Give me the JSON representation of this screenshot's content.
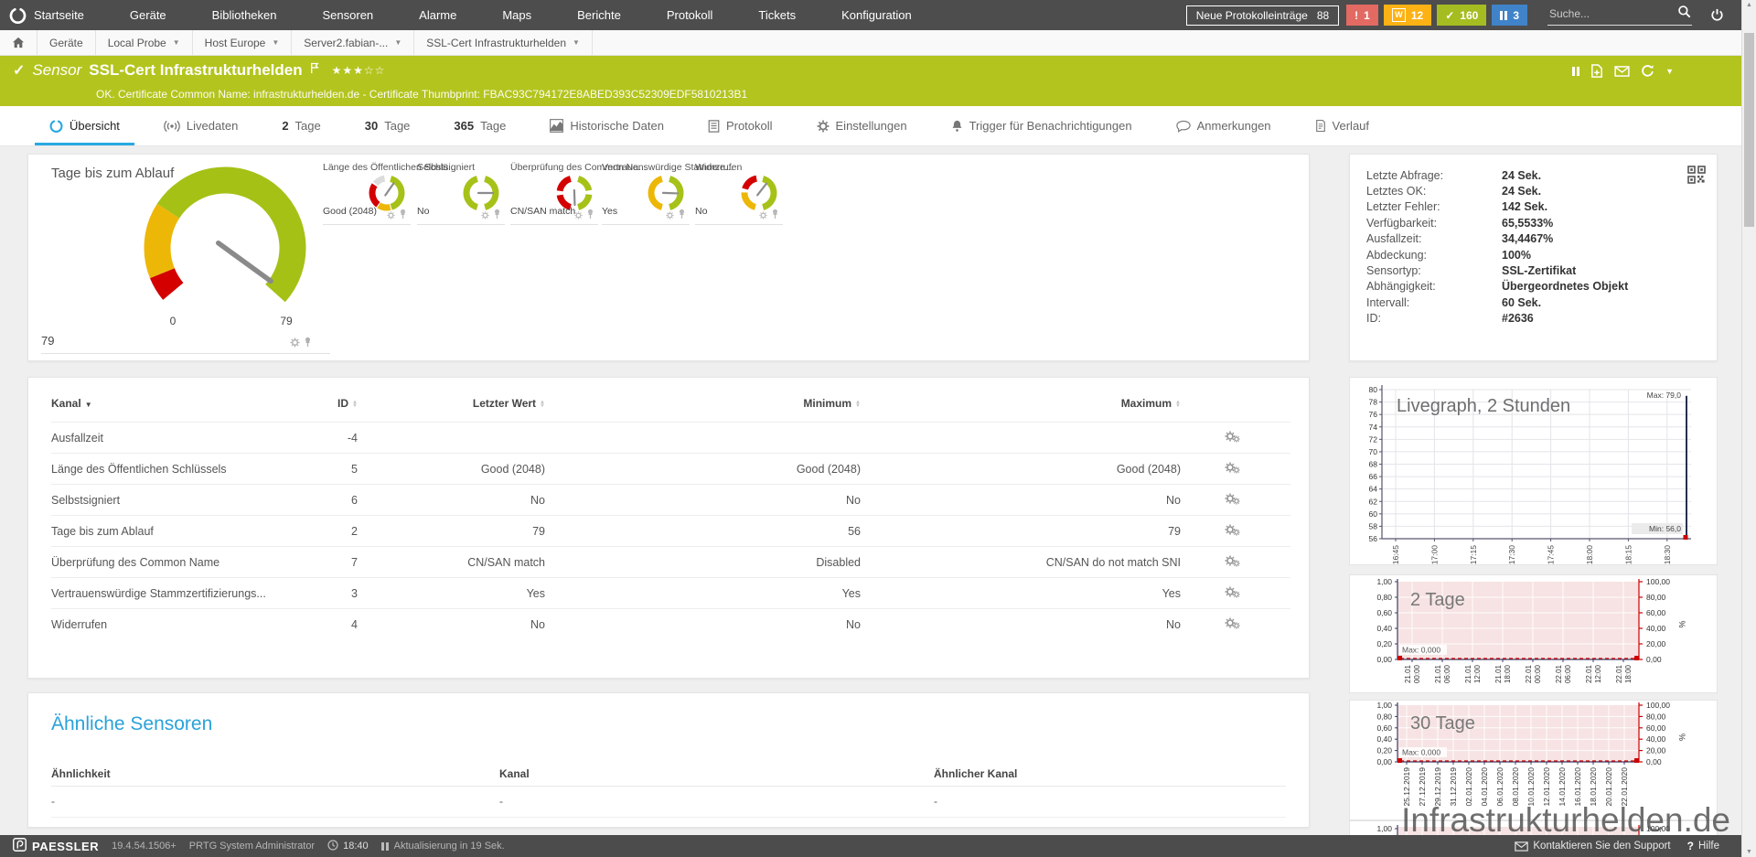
{
  "topnav": {
    "items": [
      "Startseite",
      "Geräte",
      "Bibliotheken",
      "Sensoren",
      "Alarme",
      "Maps",
      "Berichte",
      "Protokoll",
      "Tickets",
      "Konfiguration"
    ],
    "log_button_label": "Neue Protokolleinträge",
    "log_button_count": "88",
    "badges": [
      {
        "type": "error",
        "glyph": "!",
        "count": "1",
        "color": "#e26a62",
        "boxed": false
      },
      {
        "type": "warning",
        "glyph": "W",
        "count": "12",
        "color": "#fcb215",
        "boxed": true
      },
      {
        "type": "ok",
        "glyph": "✓",
        "count": "160",
        "color": "#a6bd21",
        "boxed": false
      },
      {
        "type": "paused",
        "glyph": "pause",
        "count": "3",
        "color": "#4083c9",
        "boxed": false
      }
    ],
    "search_placeholder": "Suche..."
  },
  "breadcrumb": [
    "Geräte",
    "Local Probe",
    "Host Europe",
    "Server2.fabian-...",
    "SSL-Cert Infrastrukturhelden"
  ],
  "sensor_header": {
    "kind": "Sensor",
    "name": "SSL-Cert Infrastrukturhelden",
    "stars_filled": 3,
    "stars_empty": 2,
    "status_line": "OK. Certificate Common Name: infrastrukturhelden.de - Certificate Thumbprint: FBAC93C794172E8ABED393C52309EDF5810213B1",
    "accent_color": "#b3c41e"
  },
  "tabs": [
    {
      "label": "Übersicht",
      "icon": "gauge",
      "active": true
    },
    {
      "label": "Livedaten",
      "icon": "live"
    },
    {
      "prefix": "2",
      "label": "Tage"
    },
    {
      "prefix": "30",
      "label": "Tage"
    },
    {
      "prefix": "365",
      "label": "Tage"
    },
    {
      "label": "Historische Daten",
      "icon": "chart"
    },
    {
      "label": "Protokoll",
      "icon": "doc"
    },
    {
      "label": "Einstellungen",
      "icon": "gear"
    },
    {
      "label": "Trigger für Benachrichtigungen",
      "icon": "bell"
    },
    {
      "label": "Anmerkungen",
      "icon": "comment"
    },
    {
      "label": "Verlauf",
      "icon": "note"
    }
  ],
  "overview": {
    "main_gauge": {
      "title": "Tage bis zum Ablauf",
      "value": "79",
      "scale_min": "0",
      "scale_max": "79",
      "needle_deg": 126,
      "segments": [
        [
          230,
          248,
          "#d40000"
        ],
        [
          248,
          303,
          "#edb707"
        ],
        [
          303,
          492,
          "#a5c116"
        ]
      ]
    },
    "mini_gauges": [
      {
        "title": "Länge des Öffentlichen Schlü...",
        "value": "Good (2048)",
        "needle_deg": 35,
        "segments": [
          [
            15,
            163,
            "#a6c219"
          ],
          [
            167,
            213,
            "#edb707"
          ],
          [
            217,
            303,
            "#d40000"
          ],
          [
            309,
            351,
            "#dcdcdc"
          ]
        ]
      },
      {
        "title": "Selbstsigniert",
        "value": "No",
        "needle_deg": 90,
        "segments": [
          [
            15,
            165,
            "#a6c219"
          ],
          [
            195,
            345,
            "#a6c219"
          ]
        ]
      },
      {
        "title": "Überprüfung des Common Na...",
        "value": "CN/SAN match",
        "needle_deg": 178,
        "segments": [
          [
            15,
            80,
            "#a6c219"
          ],
          [
            96,
            165,
            "#a6c219"
          ],
          [
            195,
            262,
            "#d40000"
          ],
          [
            278,
            345,
            "#d40000"
          ]
        ]
      },
      {
        "title": "Vertrauenswürdige Stammze...",
        "value": "Yes",
        "needle_deg": 92,
        "segments": [
          [
            15,
            165,
            "#a6c219"
          ],
          [
            195,
            345,
            "#edb707"
          ]
        ]
      },
      {
        "title": "Widerrufen",
        "value": "No",
        "needle_deg": 38,
        "segments": [
          [
            15,
            165,
            "#a6c219"
          ],
          [
            195,
            272,
            "#edb707"
          ],
          [
            286,
            350,
            "#d40000"
          ]
        ]
      }
    ]
  },
  "channel_table": {
    "headers": [
      "Kanal",
      "ID",
      "Letzter Wert",
      "Minimum",
      "Maximum"
    ],
    "rows": [
      {
        "kanal": "Ausfallzeit",
        "id": "-4",
        "letzter": "",
        "min": "",
        "max": ""
      },
      {
        "kanal": "Länge des Öffentlichen Schlüssels",
        "id": "5",
        "letzter": "Good (2048)",
        "min": "Good (2048)",
        "max": "Good (2048)"
      },
      {
        "kanal": "Selbstsigniert",
        "id": "6",
        "letzter": "No",
        "min": "No",
        "max": "No"
      },
      {
        "kanal": "Tage bis zum Ablauf",
        "id": "2",
        "letzter": "79",
        "min": "56",
        "max": "79"
      },
      {
        "kanal": "Überprüfung des Common Name",
        "id": "7",
        "letzter": "CN/SAN match",
        "min": "Disabled",
        "max": "CN/SAN do not match SNI"
      },
      {
        "kanal": "Vertrauenswürdige Stammzertifizierungs...",
        "id": "3",
        "letzter": "Yes",
        "min": "Yes",
        "max": "Yes"
      },
      {
        "kanal": "Widerrufen",
        "id": "4",
        "letzter": "No",
        "min": "No",
        "max": "No"
      }
    ]
  },
  "info_panel": {
    "rows": [
      {
        "label": "Letzte Abfrage:",
        "value": "24 Sek."
      },
      {
        "label": "Letztes OK:",
        "value": "24 Sek."
      },
      {
        "label": "Letzter Fehler:",
        "value": "142 Sek."
      },
      {
        "label": "Verfügbarkeit:",
        "value": "65,5533%"
      },
      {
        "label": "Ausfallzeit:",
        "value": "34,4467%"
      },
      {
        "label": "Abdeckung:",
        "value": "100%"
      },
      {
        "label": "Sensortyp:",
        "value": "SSL-Zertifikat"
      },
      {
        "label": "Abhängigkeit:",
        "value": "Übergeordnetes Objekt"
      },
      {
        "label": "Intervall:",
        "value": "60 Sek."
      },
      {
        "label": "ID:",
        "value": "#2636"
      }
    ]
  },
  "chart_data": [
    {
      "id": "livegraph",
      "type": "line",
      "title": "Livegraph, 2 Stunden",
      "x_ticks": [
        "16:45",
        "17:00",
        "17:15",
        "17:30",
        "17:45",
        "18:00",
        "18:15",
        "18:30"
      ],
      "y_ticks": [
        "80",
        "78",
        "76",
        "74",
        "72",
        "70",
        "68",
        "66",
        "64",
        "62",
        "60",
        "58",
        "56"
      ],
      "y_min": 56,
      "y_max": 80,
      "max_label": "Max: 79,0",
      "min_label": "Min: 56,0",
      "series": [
        {
          "name": "Tage bis zum Ablauf",
          "shape": "flat then spike at right edge",
          "spike_from": 56,
          "spike_to": 79
        }
      ],
      "line_color": "#25304f",
      "grid": true,
      "legend": "none"
    },
    {
      "id": "graph-2-tage",
      "type": "area",
      "title": "2 Tage",
      "left_ticks": [
        "1,00",
        "0,80",
        "0,60",
        "0,40",
        "0,20",
        "0,00"
      ],
      "right_ticks": [
        "100,00",
        "80,00",
        "60,00",
        "40,00",
        "20,00",
        "0,00"
      ],
      "right_unit": "%",
      "x_ticks": [
        [
          "21.01",
          "00:00"
        ],
        [
          "21.01",
          "06:00"
        ],
        [
          "21.01",
          "12:00"
        ],
        [
          "21.01",
          "18:00"
        ],
        [
          "22.01",
          "00:00"
        ],
        [
          "22.01",
          "06:00"
        ],
        [
          "22.01",
          "12:00"
        ],
        [
          "22.01",
          "18:00"
        ]
      ],
      "max_label": "Max: 0,000",
      "series": [
        {
          "name": "Wert",
          "values": "constant 0"
        }
      ],
      "fill_color": "#f7e3e3",
      "zero_line_color": "#cc0000",
      "grid": true
    },
    {
      "id": "graph-30-tage",
      "type": "area",
      "title": "30 Tage",
      "left_ticks": [
        "1,00",
        "0,80",
        "0,60",
        "0,40",
        "0,20",
        "0,00"
      ],
      "right_ticks": [
        "100,00",
        "80,00",
        "60,00",
        "40,00",
        "20,00",
        "0,00"
      ],
      "right_unit": "%",
      "x_ticks": [
        "25.12.2019",
        "27.12.2019",
        "29.12.2019",
        "31.12.2019",
        "02.01.2020",
        "04.01.2020",
        "06.01.2020",
        "08.01.2020",
        "10.01.2020",
        "12.01.2020",
        "14.01.2020",
        "16.01.2020",
        "18.01.2020",
        "20.01.2020",
        "22.01.2020"
      ],
      "max_label": "Max: 0,000",
      "series": [
        {
          "name": "Wert",
          "values": "constant 0"
        }
      ],
      "fill_color": "#f7e3e3",
      "zero_line_color": "#cc0000",
      "grid": true
    },
    {
      "id": "graph-365-partial",
      "type": "area",
      "title": "",
      "left_ticks": [
        "1,00"
      ],
      "right_ticks": [
        "100,00"
      ],
      "x_ticks": [],
      "fill_color": "#f7e3e3",
      "note": "bottom panel cut off by footer"
    }
  ],
  "similar": {
    "title": "Ähnliche Sensoren",
    "headers": [
      "Ähnlichkeit",
      "Kanal",
      "Ähnlicher Kanal"
    ],
    "rows": [
      [
        "-",
        "-",
        "-"
      ]
    ]
  },
  "watermark": "Infrastrukturhelden.de",
  "footer": {
    "brand": "PAESSLER",
    "version": "19.4.54.1506+",
    "user": "PRTG System Administrator",
    "time": "18:40",
    "refresh_note": "Aktualisierung in 19 Sek.",
    "support_label": "Kontaktieren Sie den Support",
    "help_label": "Hilfe"
  }
}
